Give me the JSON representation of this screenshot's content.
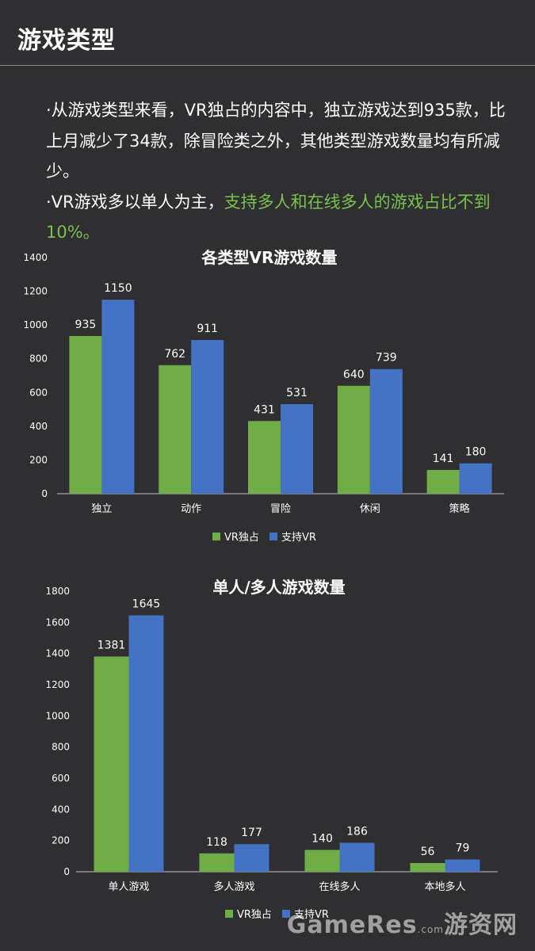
{
  "header": {
    "title": "游戏类型"
  },
  "text": {
    "bullet1": "·从游戏类型来看，VR独占的内容中，独立游戏达到935款，比上月减少了34款，除冒险类之外，其他类型游戏数量均有所减少。",
    "bullet2_prefix": "·VR游戏多以单人为主，",
    "bullet2_highlight": "支持多人和在线多人的游戏占比不到10%。"
  },
  "colors": {
    "vr_exclusive": "#70ad47",
    "vr_supported": "#4472c4",
    "highlight": "#79c24e"
  },
  "watermark": {
    "brand": "GameRes",
    "dotcom": ".com",
    "name": "游资网"
  },
  "chart_data": [
    {
      "type": "bar",
      "title": "各类型VR游戏数量",
      "categories": [
        "独立",
        "动作",
        "冒险",
        "休闲",
        "策略"
      ],
      "series": [
        {
          "name": "VR独占",
          "values": [
            935,
            762,
            431,
            640,
            141
          ]
        },
        {
          "name": "支持VR",
          "values": [
            1150,
            911,
            531,
            739,
            180
          ]
        }
      ],
      "ylim": [
        0,
        1400
      ],
      "yticks": [
        0,
        200,
        400,
        600,
        800,
        1000,
        1200,
        1400
      ],
      "grid": false,
      "legend": "bottom"
    },
    {
      "type": "bar",
      "title": "单人/多人游戏数量",
      "categories": [
        "单人游戏",
        "多人游戏",
        "在线多人",
        "本地多人"
      ],
      "series": [
        {
          "name": "VR独占",
          "values": [
            1381,
            118,
            140,
            56
          ]
        },
        {
          "name": "支持VR",
          "values": [
            1645,
            177,
            186,
            79
          ]
        }
      ],
      "ylim": [
        0,
        1800
      ],
      "yticks": [
        0,
        200,
        400,
        600,
        800,
        1000,
        1200,
        1400,
        1600,
        1800
      ],
      "grid": false,
      "legend": "bottom"
    }
  ]
}
